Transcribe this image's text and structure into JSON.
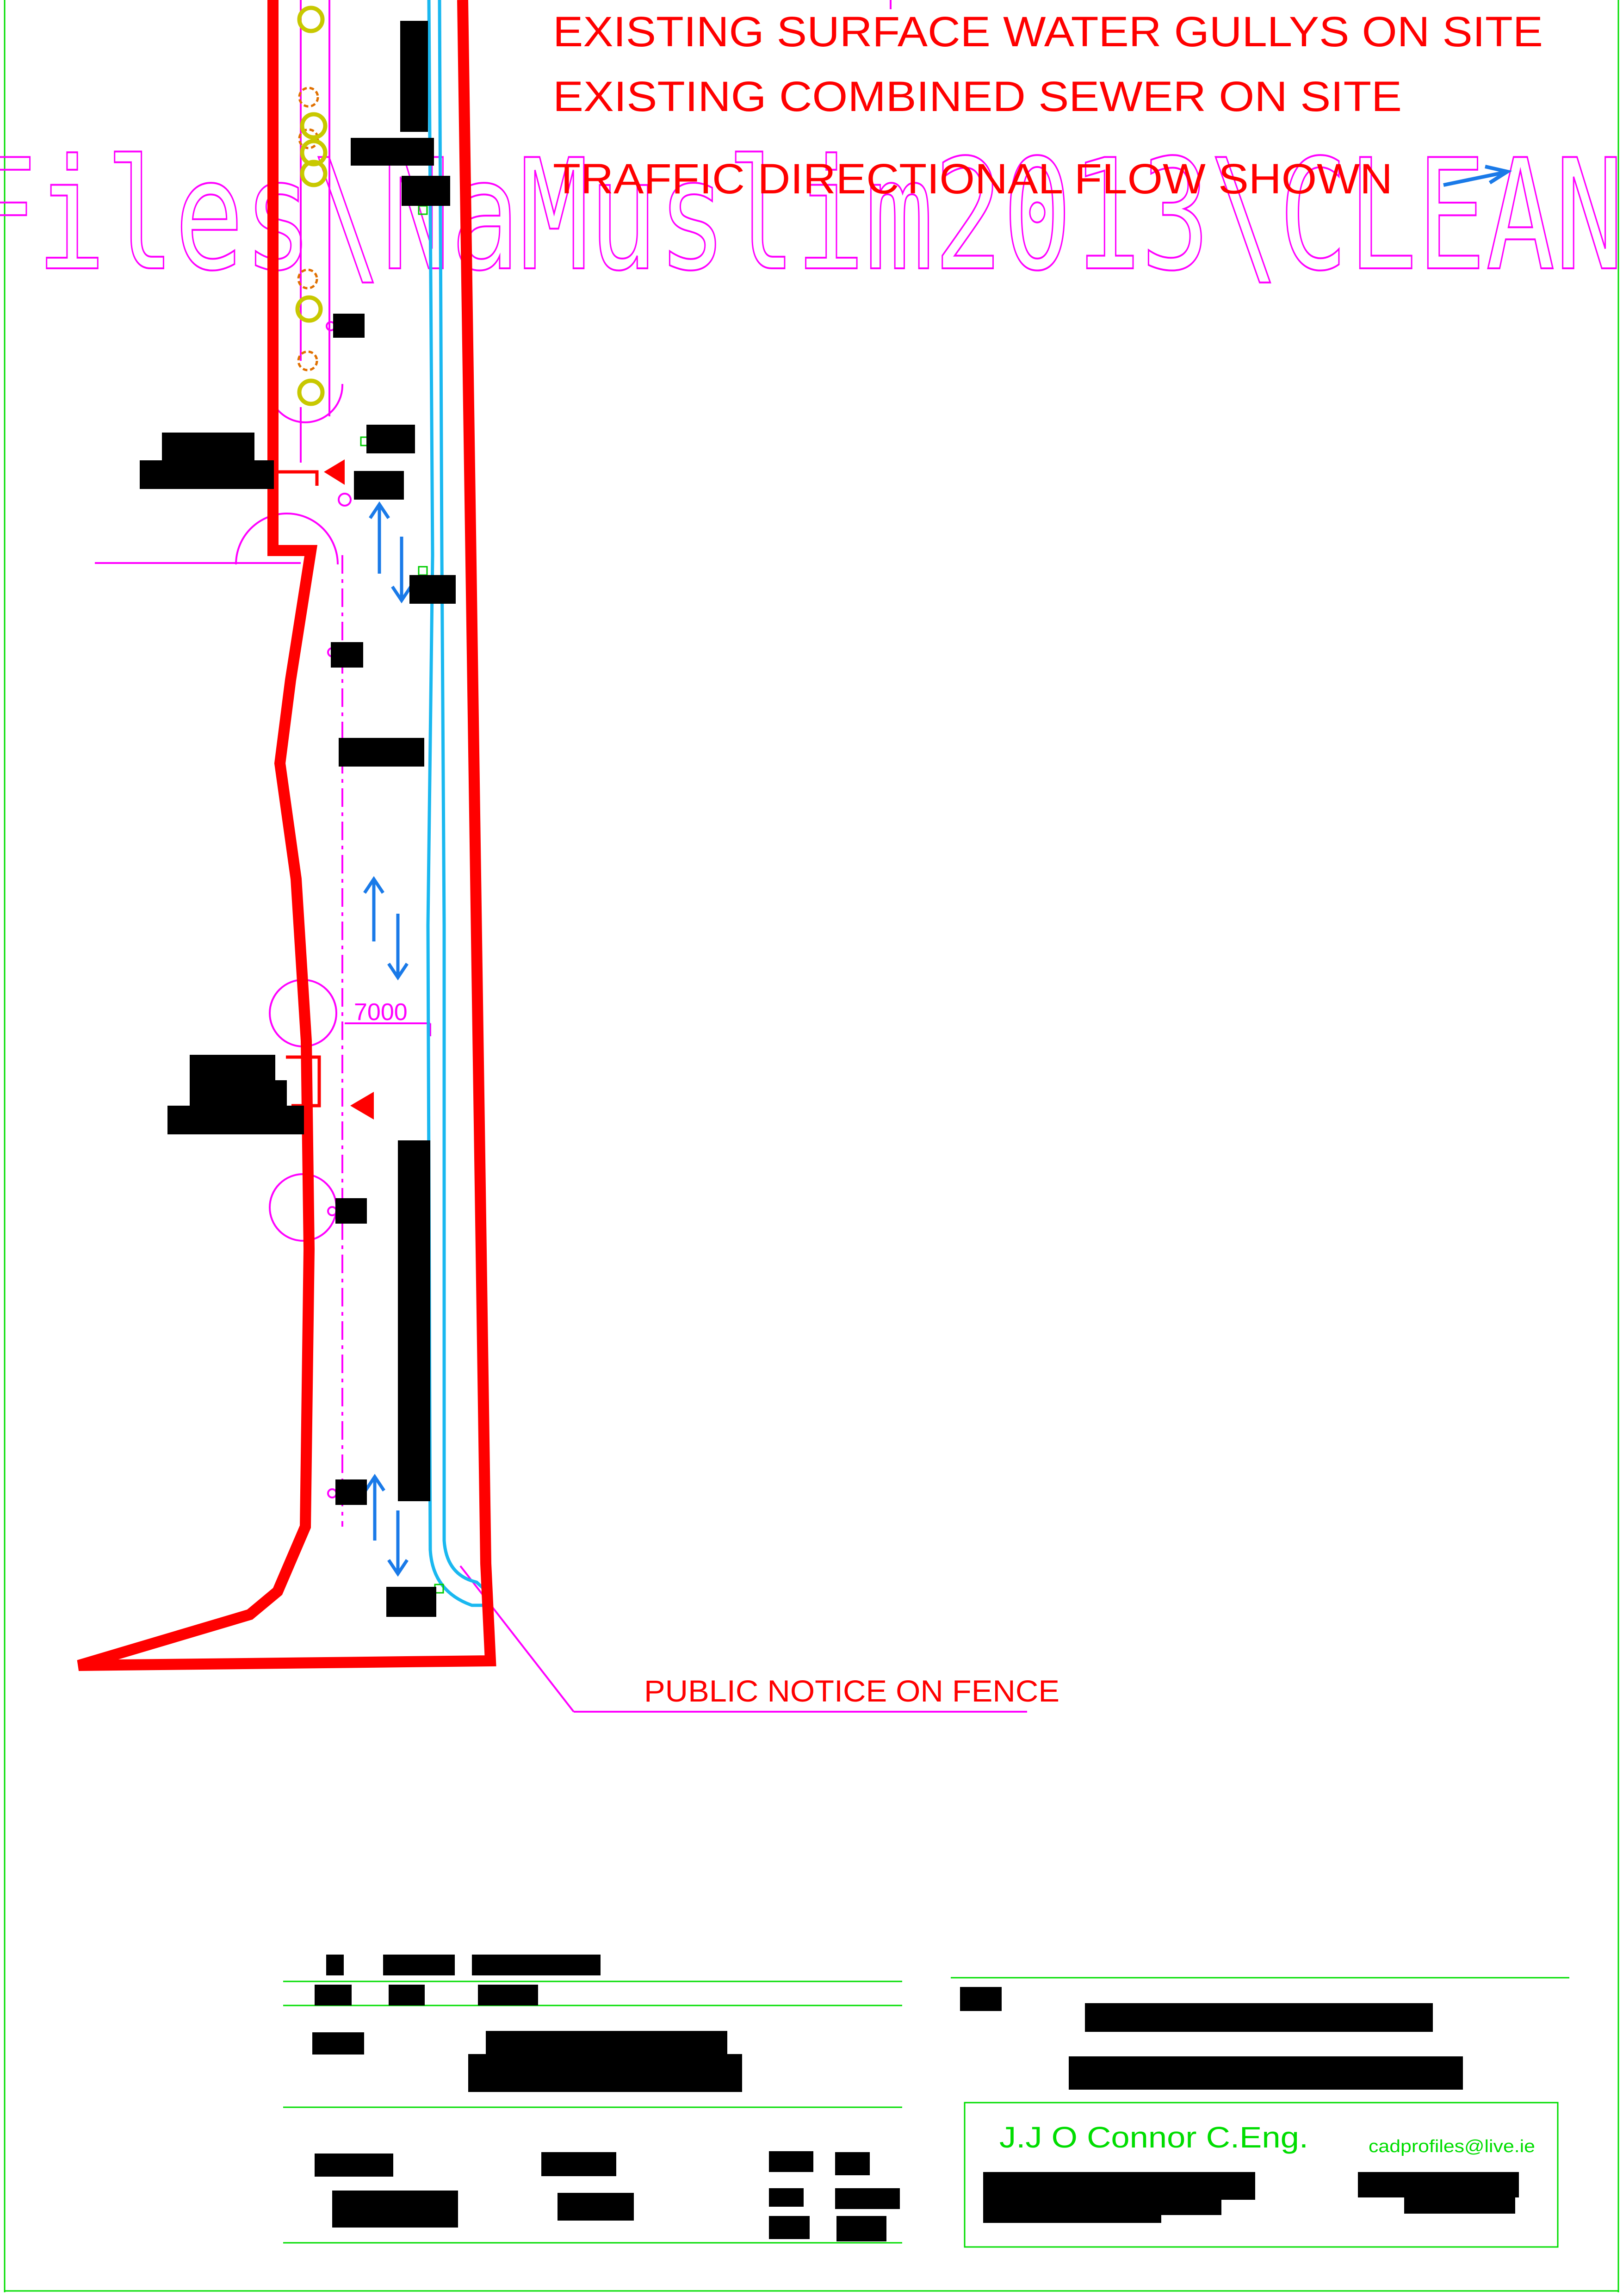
{
  "notes": {
    "line1": "EXISTING SURFACE WATER GULLYS ON SITE",
    "line2": "EXISTING COMBINED SEWER ON SITE",
    "line3": "TRAFFIC DIRECTIONAL FLOW SHOWN"
  },
  "watermark": "Files\\NaMuslim2013\\CLEAN",
  "dimension": "7000",
  "callout": "PUBLIC NOTICE ON FENCE",
  "title_block": {
    "engineer": "J.J O Connor C.Eng.",
    "email": "cadprofiles@live.ie"
  },
  "colors": {
    "site_boundary": "#ff0000",
    "road_edge": "#1ab8f0",
    "traffic_arrow": "#1a7ae8",
    "annotation": "#ff00ff",
    "frame": "#00dd00",
    "gully": "#c8c800",
    "tree": "#e07000",
    "redaction": "#000000"
  },
  "icons": [
    "gully-icon",
    "tree-icon",
    "traffic-flow-arrow-icon",
    "entrance-marker-icon"
  ]
}
